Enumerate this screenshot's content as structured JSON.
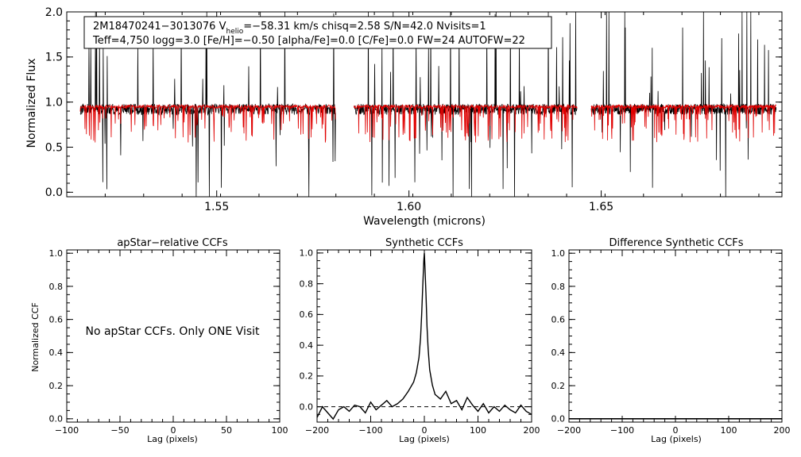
{
  "figure": {
    "colors": {
      "observed": "#000000",
      "model": "#e00000",
      "axes": "#000000",
      "background": "#ffffff"
    }
  },
  "chart_data": [
    {
      "type": "line",
      "name": "spectrum",
      "header_line1_a": "2M18470241−3013076  V",
      "header_line1_sub": "helio",
      "header_line1_b": "=−58.31 km/s  chisq=2.58  S/N=42.0  Nvisits=1",
      "header_line2": "Teff=4,750 logg=3.0 [Fe/H]=−0.50 [alpha/Fe]=0.0 [C/Fe]=0.0 FW=24 AUTOFW=22",
      "xlabel": "Wavelength (microns)",
      "ylabel": "Normalized Flux",
      "xlim": [
        1.511,
        1.697
      ],
      "ylim": [
        -0.05,
        2.0
      ],
      "xticks": [
        1.55,
        1.6,
        1.65
      ],
      "xtick_labels": [
        "1.55",
        "1.60",
        "1.65"
      ],
      "yticks": [
        0.0,
        0.5,
        1.0,
        1.5,
        2.0
      ],
      "ytick_labels": [
        "0.0",
        "0.5",
        "1.0",
        "1.5",
        "2.0"
      ],
      "chips": [
        [
          1.5145,
          1.5809
        ],
        [
          1.5857,
          1.6437
        ],
        [
          1.6474,
          1.6955
        ]
      ],
      "series": [
        {
          "name": "observed",
          "color": "#000000",
          "level": 0.92
        },
        {
          "name": "model",
          "color": "#e00000",
          "level": 0.95
        }
      ]
    },
    {
      "type": "line",
      "name": "apstar-ccf",
      "title": "apStar−relative CCFs",
      "xlabel": "Lag (pixels)",
      "ylabel": "Normalized CCF",
      "xlim": [
        -100,
        100
      ],
      "ylim": [
        -0.02,
        1.02
      ],
      "xticks": [
        -100,
        -50,
        0,
        50,
        100
      ],
      "xtick_labels": [
        "−100",
        "−50",
        "0",
        "50",
        "100"
      ],
      "yticks": [
        0.0,
        0.2,
        0.4,
        0.6,
        0.8,
        1.0
      ],
      "ytick_labels": [
        "0.0",
        "0.2",
        "0.4",
        "0.6",
        "0.8",
        "1.0"
      ],
      "annotation": "No apStar CCFs.  Only ONE Visit"
    },
    {
      "type": "line",
      "name": "synthetic-ccf",
      "title": "Synthetic CCFs",
      "xlabel": "Lag (pixels)",
      "xlim": [
        -200,
        200
      ],
      "ylim": [
        -0.1,
        1.02
      ],
      "xticks": [
        -200,
        -100,
        0,
        100,
        200
      ],
      "xtick_labels": [
        "−200",
        "−100",
        "0",
        "100",
        "200"
      ],
      "yticks": [
        0.0,
        0.2,
        0.4,
        0.6,
        0.8,
        1.0
      ],
      "ytick_labels": [
        "0.0",
        "0.2",
        "0.4",
        "0.6",
        "0.8",
        "1.0"
      ],
      "zero_line": 0.0,
      "x": [
        -200,
        -190,
        -180,
        -170,
        -160,
        -150,
        -140,
        -130,
        -120,
        -110,
        -100,
        -90,
        -80,
        -70,
        -60,
        -50,
        -40,
        -30,
        -20,
        -15,
        -10,
        -7,
        -5,
        -3,
        -1,
        0,
        1,
        3,
        5,
        7,
        10,
        15,
        20,
        30,
        40,
        50,
        60,
        70,
        80,
        90,
        100,
        110,
        120,
        130,
        140,
        150,
        160,
        170,
        180,
        190,
        200
      ],
      "values": [
        -0.07,
        0.0,
        -0.04,
        -0.08,
        -0.02,
        0.0,
        -0.03,
        0.01,
        0.0,
        -0.04,
        0.03,
        -0.02,
        0.01,
        0.04,
        0.0,
        0.02,
        0.05,
        0.1,
        0.16,
        0.22,
        0.32,
        0.45,
        0.6,
        0.78,
        0.95,
        1.0,
        0.92,
        0.74,
        0.52,
        0.38,
        0.24,
        0.14,
        0.08,
        0.05,
        0.1,
        0.02,
        0.04,
        -0.02,
        0.06,
        0.01,
        -0.03,
        0.02,
        -0.04,
        0.0,
        -0.03,
        0.01,
        -0.02,
        -0.04,
        0.01,
        -0.03,
        -0.05
      ]
    },
    {
      "type": "line",
      "name": "difference-ccf",
      "title": "Difference Synthetic CCFs",
      "xlabel": "Lag (pixels)",
      "xlim": [
        -200,
        200
      ],
      "ylim": [
        -0.02,
        1.02
      ],
      "xticks": [
        -200,
        -100,
        0,
        100,
        200
      ],
      "xtick_labels": [
        "−200",
        "−100",
        "0",
        "100",
        "200"
      ],
      "yticks": [
        0.0,
        0.2,
        0.4,
        0.6,
        0.8,
        1.0
      ],
      "ytick_labels": [
        "0.0",
        "0.2",
        "0.4",
        "0.6",
        "0.8",
        "1.0"
      ],
      "x": [
        -200,
        200
      ],
      "values": [
        0.0,
        0.0
      ]
    }
  ]
}
